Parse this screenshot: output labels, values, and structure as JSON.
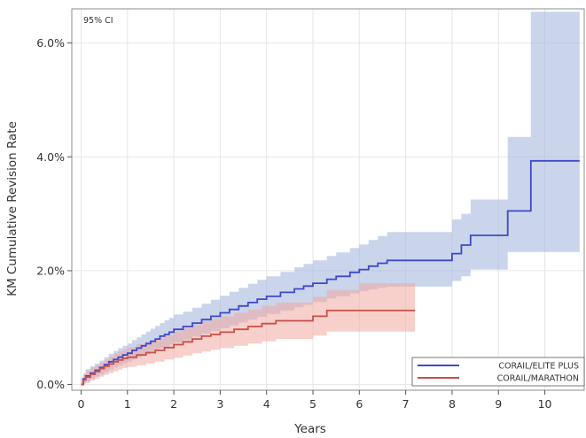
{
  "chart_data": {
    "type": "line",
    "step": true,
    "annotation": "95% CI",
    "xlabel": "Years",
    "ylabel": "KM Cumulative Revision Rate",
    "xlim": [
      -0.2,
      10.85
    ],
    "ylim": [
      -0.1,
      6.6
    ],
    "x_ticks": [
      0,
      1,
      2,
      3,
      4,
      5,
      6,
      7,
      8,
      9,
      10
    ],
    "y_ticks": [
      0,
      2,
      4,
      6
    ],
    "y_tick_labels": [
      "0.0%",
      "2.0%",
      "4.0%",
      "6.0%"
    ],
    "grid": true,
    "legend_position": "bottom-right",
    "series": [
      {
        "name": "CORAIL/ELITE PLUS",
        "color": "#3f48c8",
        "band_color": "#9fb3da",
        "x": [
          0,
          0.05,
          0.1,
          0.2,
          0.3,
          0.4,
          0.5,
          0.6,
          0.7,
          0.8,
          0.9,
          1.0,
          1.1,
          1.2,
          1.3,
          1.4,
          1.5,
          1.6,
          1.7,
          1.8,
          1.9,
          2.0,
          2.2,
          2.4,
          2.6,
          2.8,
          3.0,
          3.2,
          3.4,
          3.6,
          3.8,
          4.0,
          4.3,
          4.6,
          4.8,
          5.0,
          5.3,
          5.5,
          5.8,
          6.0,
          6.2,
          6.4,
          6.6,
          7.0,
          7.5,
          8.0,
          8.2,
          8.4,
          8.8,
          9.2,
          9.5,
          9.7,
          10.75
        ],
        "y": [
          0,
          0.1,
          0.15,
          0.2,
          0.25,
          0.3,
          0.35,
          0.4,
          0.44,
          0.48,
          0.52,
          0.55,
          0.6,
          0.64,
          0.68,
          0.72,
          0.76,
          0.8,
          0.85,
          0.88,
          0.92,
          0.97,
          1.02,
          1.08,
          1.14,
          1.2,
          1.26,
          1.32,
          1.38,
          1.44,
          1.5,
          1.55,
          1.62,
          1.68,
          1.73,
          1.78,
          1.85,
          1.9,
          1.97,
          2.02,
          2.08,
          2.13,
          2.18,
          2.18,
          2.18,
          2.3,
          2.45,
          2.62,
          2.62,
          3.05,
          3.05,
          3.93,
          3.93
        ],
        "lower": [
          0,
          0.02,
          0.05,
          0.1,
          0.14,
          0.18,
          0.22,
          0.26,
          0.3,
          0.33,
          0.37,
          0.4,
          0.44,
          0.47,
          0.5,
          0.53,
          0.57,
          0.6,
          0.64,
          0.67,
          0.7,
          0.74,
          0.79,
          0.84,
          0.89,
          0.94,
          0.99,
          1.04,
          1.09,
          1.14,
          1.19,
          1.24,
          1.3,
          1.36,
          1.4,
          1.45,
          1.51,
          1.55,
          1.6,
          1.64,
          1.67,
          1.7,
          1.72,
          1.72,
          1.72,
          1.82,
          1.9,
          2.02,
          2.02,
          2.33,
          2.33,
          2.33,
          2.33
        ],
        "upper": [
          0.12,
          0.2,
          0.27,
          0.32,
          0.37,
          0.42,
          0.48,
          0.54,
          0.59,
          0.64,
          0.68,
          0.72,
          0.78,
          0.83,
          0.88,
          0.93,
          0.98,
          1.03,
          1.08,
          1.13,
          1.17,
          1.23,
          1.28,
          1.35,
          1.42,
          1.49,
          1.56,
          1.63,
          1.7,
          1.77,
          1.84,
          1.9,
          1.98,
          2.06,
          2.12,
          2.18,
          2.26,
          2.32,
          2.4,
          2.46,
          2.54,
          2.61,
          2.68,
          2.68,
          2.68,
          2.9,
          3.0,
          3.25,
          3.25,
          4.35,
          4.35,
          6.55,
          6.55
        ]
      },
      {
        "name": "CORAIL/MARATHON",
        "color": "#c8504a",
        "band_color": "#f0a8a0",
        "x": [
          0,
          0.05,
          0.1,
          0.2,
          0.3,
          0.4,
          0.5,
          0.6,
          0.7,
          0.8,
          0.9,
          1.0,
          1.2,
          1.4,
          1.6,
          1.8,
          2.0,
          2.2,
          2.4,
          2.6,
          2.8,
          3.0,
          3.3,
          3.6,
          3.9,
          4.2,
          4.6,
          5.0,
          5.3,
          6.0,
          7.2
        ],
        "y": [
          0,
          0.08,
          0.13,
          0.18,
          0.23,
          0.28,
          0.32,
          0.36,
          0.4,
          0.43,
          0.46,
          0.48,
          0.52,
          0.56,
          0.6,
          0.65,
          0.7,
          0.75,
          0.8,
          0.85,
          0.88,
          0.92,
          0.97,
          1.02,
          1.07,
          1.12,
          1.12,
          1.2,
          1.3,
          1.3,
          1.3
        ],
        "lower": [
          0,
          0.01,
          0.03,
          0.07,
          0.1,
          0.14,
          0.17,
          0.2,
          0.23,
          0.26,
          0.29,
          0.31,
          0.34,
          0.37,
          0.4,
          0.44,
          0.47,
          0.51,
          0.55,
          0.58,
          0.61,
          0.64,
          0.68,
          0.72,
          0.76,
          0.8,
          0.8,
          0.86,
          0.93,
          0.93,
          0.93
        ],
        "upper": [
          0.1,
          0.18,
          0.24,
          0.3,
          0.34,
          0.39,
          0.44,
          0.49,
          0.54,
          0.58,
          0.62,
          0.66,
          0.71,
          0.76,
          0.81,
          0.87,
          0.93,
          0.99,
          1.05,
          1.11,
          1.15,
          1.2,
          1.26,
          1.32,
          1.38,
          1.44,
          1.44,
          1.54,
          1.66,
          1.78,
          1.78
        ]
      }
    ]
  }
}
